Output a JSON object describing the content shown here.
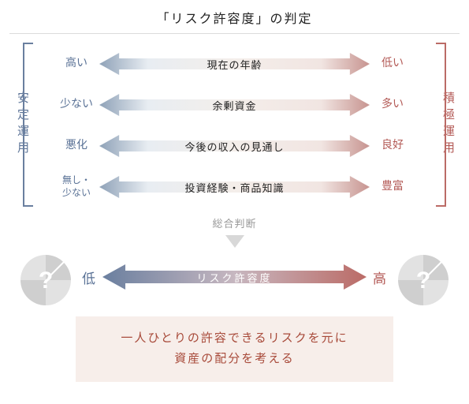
{
  "title": "「リスク許容度」の判定",
  "colors": {
    "left_text": "#5a7296",
    "right_text": "#b35a56",
    "grad_left_light": "#e8edf2",
    "grad_left_mid": "#8fa2b8",
    "grad_center": "#f4eeea",
    "grad_right_mid": "#c79490",
    "grad_right_light": "#f1e5e2",
    "bracket_left": "#6a7f9f",
    "bracket_right": "#bb6b66",
    "divider": "#dcdcdc",
    "judgement_text": "#999999",
    "pie_gray": "#cfcfcf",
    "pie_gray_light": "#e2e2e2",
    "pie_q": "#ffffff",
    "conclusion_bg": "#f7eeea",
    "conclusion_text": "#a84a3a",
    "big_grad_left": "#6a7f9f",
    "big_grad_right": "#bb6b66"
  },
  "left_vlabel": "安定運用",
  "right_vlabel": "積極運用",
  "rows": [
    {
      "left": "高い",
      "center": "現在の年齢",
      "right": "低い"
    },
    {
      "left": "少ない",
      "center": "余剰資金",
      "right": "多い"
    },
    {
      "left": "悪化",
      "center": "今後の収入の見通し",
      "right": "良好"
    },
    {
      "left": "無し・\n少ない",
      "center": "投資経験・商品知識",
      "right": "豊富"
    }
  ],
  "judgement": "総合判断",
  "tolerance": {
    "left": "低",
    "center": "リスク許容度",
    "right": "高"
  },
  "pie_q": "?",
  "conclusion_line1": "一人ひとりの許容できるリスクを元に",
  "conclusion_line2": "資産の配分を考える"
}
